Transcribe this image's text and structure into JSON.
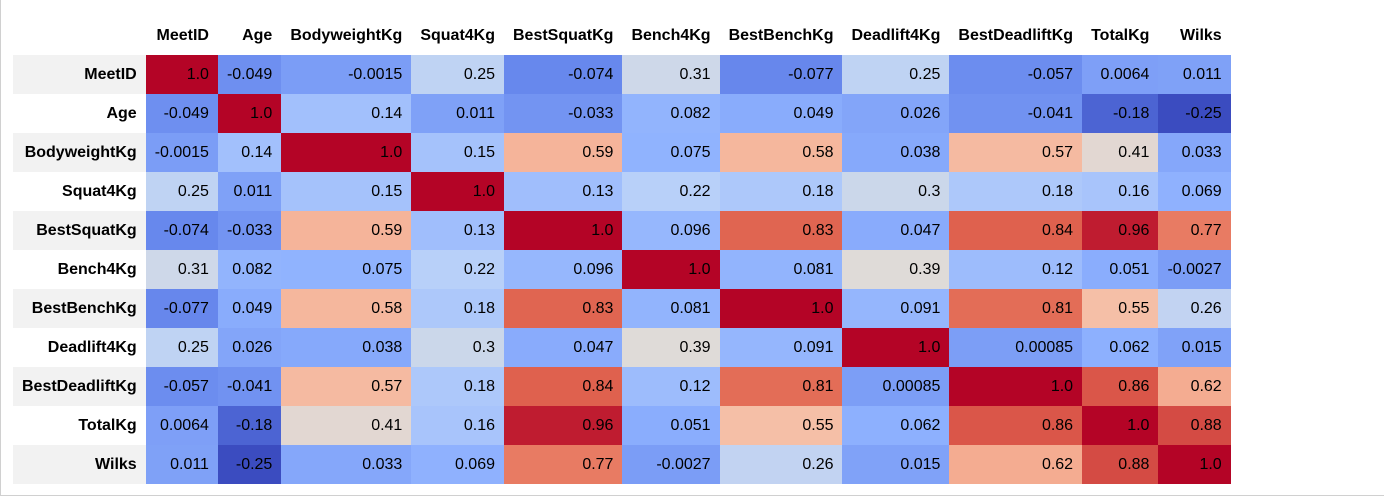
{
  "chart_data": {
    "type": "heatmap",
    "colormap": "coolwarm",
    "vmin": -0.25,
    "vmax": 1.0,
    "row_labels": [
      "MeetID",
      "Age",
      "BodyweightKg",
      "Squat4Kg",
      "BestSquatKg",
      "Bench4Kg",
      "BestBenchKg",
      "Deadlift4Kg",
      "BestDeadliftKg",
      "TotalKg",
      "Wilks"
    ],
    "col_labels": [
      "MeetID",
      "Age",
      "BodyweightKg",
      "Squat4Kg",
      "BestSquatKg",
      "Bench4Kg",
      "BestBenchKg",
      "Deadlift4Kg",
      "BestDeadliftKg",
      "TotalKg",
      "Wilks"
    ],
    "values": [
      [
        1.0,
        -0.049,
        -0.0015,
        0.25,
        -0.074,
        0.31,
        -0.077,
        0.25,
        -0.057,
        0.0064,
        0.011
      ],
      [
        -0.049,
        1.0,
        0.14,
        0.011,
        -0.033,
        0.082,
        0.049,
        0.026,
        -0.041,
        -0.18,
        -0.25
      ],
      [
        -0.0015,
        0.14,
        1.0,
        0.15,
        0.59,
        0.075,
        0.58,
        0.038,
        0.57,
        0.41,
        0.033
      ],
      [
        0.25,
        0.011,
        0.15,
        1.0,
        0.13,
        0.22,
        0.18,
        0.3,
        0.18,
        0.16,
        0.069
      ],
      [
        -0.074,
        -0.033,
        0.59,
        0.13,
        1.0,
        0.096,
        0.83,
        0.047,
        0.84,
        0.96,
        0.77
      ],
      [
        0.31,
        0.082,
        0.075,
        0.22,
        0.096,
        1.0,
        0.081,
        0.39,
        0.12,
        0.051,
        -0.0027
      ],
      [
        -0.077,
        0.049,
        0.58,
        0.18,
        0.83,
        0.081,
        1.0,
        0.091,
        0.81,
        0.55,
        0.26
      ],
      [
        0.25,
        0.026,
        0.038,
        0.3,
        0.047,
        0.39,
        0.091,
        1.0,
        0.00085,
        0.062,
        0.015
      ],
      [
        -0.057,
        -0.041,
        0.57,
        0.18,
        0.84,
        0.12,
        0.81,
        0.00085,
        1.0,
        0.86,
        0.62
      ],
      [
        0.0064,
        -0.18,
        0.41,
        0.16,
        0.96,
        0.051,
        0.55,
        0.062,
        0.86,
        1.0,
        0.88
      ],
      [
        0.011,
        -0.25,
        0.033,
        0.069,
        0.77,
        -0.0027,
        0.26,
        0.015,
        0.62,
        0.88,
        1.0
      ]
    ],
    "display": [
      [
        "1.0",
        "-0.049",
        "-0.0015",
        "0.25",
        "-0.074",
        "0.31",
        "-0.077",
        "0.25",
        "-0.057",
        "0.0064",
        "0.011"
      ],
      [
        "-0.049",
        "1.0",
        "0.14",
        "0.011",
        "-0.033",
        "0.082",
        "0.049",
        "0.026",
        "-0.041",
        "-0.18",
        "-0.25"
      ],
      [
        "-0.0015",
        "0.14",
        "1.0",
        "0.15",
        "0.59",
        "0.075",
        "0.58",
        "0.038",
        "0.57",
        "0.41",
        "0.033"
      ],
      [
        "0.25",
        "0.011",
        "0.15",
        "1.0",
        "0.13",
        "0.22",
        "0.18",
        "0.3",
        "0.18",
        "0.16",
        "0.069"
      ],
      [
        "-0.074",
        "-0.033",
        "0.59",
        "0.13",
        "1.0",
        "0.096",
        "0.83",
        "0.047",
        "0.84",
        "0.96",
        "0.77"
      ],
      [
        "0.31",
        "0.082",
        "0.075",
        "0.22",
        "0.096",
        "1.0",
        "0.081",
        "0.39",
        "0.12",
        "0.051",
        "-0.0027"
      ],
      [
        "-0.077",
        "0.049",
        "0.58",
        "0.18",
        "0.83",
        "0.081",
        "1.0",
        "0.091",
        "0.81",
        "0.55",
        "0.26"
      ],
      [
        "0.25",
        "0.026",
        "0.038",
        "0.3",
        "0.047",
        "0.39",
        "0.091",
        "1.0",
        "0.00085",
        "0.062",
        "0.015"
      ],
      [
        "-0.057",
        "-0.041",
        "0.57",
        "0.18",
        "0.84",
        "0.12",
        "0.81",
        "0.00085",
        "1.0",
        "0.86",
        "0.62"
      ],
      [
        "0.0064",
        "-0.18",
        "0.41",
        "0.16",
        "0.96",
        "0.051",
        "0.55",
        "0.062",
        "0.86",
        "1.0",
        "0.88"
      ],
      [
        "0.011",
        "-0.25",
        "0.033",
        "0.069",
        "0.77",
        "-0.0027",
        "0.26",
        "0.015",
        "0.62",
        "0.88",
        "1.0"
      ]
    ]
  }
}
